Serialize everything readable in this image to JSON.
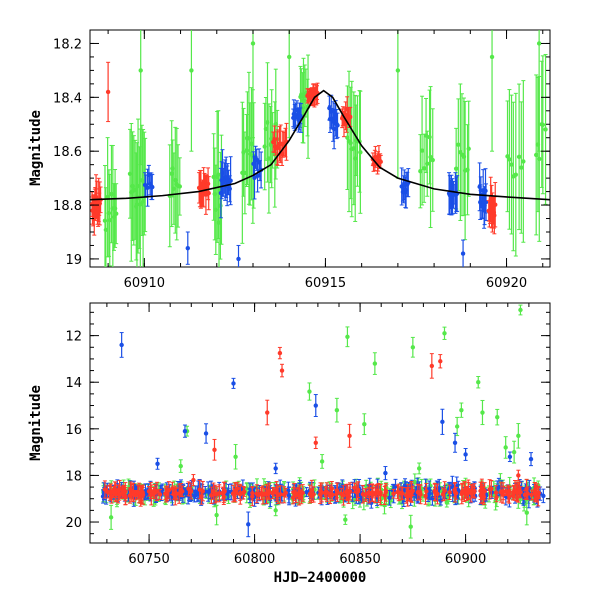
{
  "colors": {
    "red": "#ff3a2a",
    "blue": "#1a4fe6",
    "green": "#55e84a",
    "model": "#000000"
  },
  "chart_data": [
    {
      "type": "scatter",
      "panel": "top",
      "xlabel": "",
      "ylabel": "Magnitude",
      "xlim": [
        60908.5,
        60921.2
      ],
      "ylim": [
        19.03,
        18.15
      ],
      "y_inverted": true,
      "xticks": [
        60910,
        60915,
        60920
      ],
      "yticks": [
        18.2,
        18.4,
        18.6,
        18.8,
        19
      ],
      "ytick_labels": [
        "18.2",
        "18.4",
        "18.6",
        "18.8",
        "19"
      ],
      "model_curve": {
        "description": "peaked curve",
        "points": [
          [
            60908.5,
            18.78
          ],
          [
            60909.5,
            18.775
          ],
          [
            60910.5,
            18.765
          ],
          [
            60911.5,
            18.75
          ],
          [
            60912.5,
            18.72
          ],
          [
            60913.0,
            18.69
          ],
          [
            60913.5,
            18.65
          ],
          [
            60914.0,
            18.56
          ],
          [
            60914.4,
            18.47
          ],
          [
            60914.7,
            18.4
          ],
          [
            60914.95,
            18.375
          ],
          [
            60915.2,
            18.4
          ],
          [
            60915.5,
            18.47
          ],
          [
            60916.0,
            18.58
          ],
          [
            60916.5,
            18.66
          ],
          [
            60917.0,
            18.7
          ],
          [
            60918.0,
            18.74
          ],
          [
            60919.0,
            18.76
          ],
          [
            60920.0,
            18.77
          ],
          [
            60921.2,
            18.78
          ]
        ]
      },
      "series": [
        {
          "color": "red",
          "clusters": [
            {
              "x": [
                60908.55,
                60908.8
              ],
              "ymean": 18.8,
              "scatter": 0.07,
              "err": 0.06,
              "n": 16
            },
            {
              "x": [
                60911.5,
                60911.8
              ],
              "ymean": 18.74,
              "scatter": 0.06,
              "err": 0.06,
              "n": 12
            },
            {
              "x": [
                60913.55,
                60913.95
              ],
              "ymean": 18.58,
              "scatter": 0.05,
              "err": 0.05,
              "n": 12
            },
            {
              "x": [
                60914.5,
                60914.8
              ],
              "ymean": 18.39,
              "scatter": 0.03,
              "err": 0.03,
              "n": 16
            },
            {
              "x": [
                60915.45,
                60915.7
              ],
              "ymean": 18.47,
              "scatter": 0.04,
              "err": 0.04,
              "n": 10
            },
            {
              "x": [
                60916.3,
                60916.55
              ],
              "ymean": 18.64,
              "scatter": 0.03,
              "err": 0.03,
              "n": 10
            },
            {
              "x": [
                60919.5,
                60919.7
              ],
              "ymean": 18.82,
              "scatter": 0.06,
              "err": 0.06,
              "n": 10
            }
          ],
          "points": [
            [
              60909.0,
              18.38,
              0.11
            ]
          ]
        },
        {
          "color": "blue",
          "clusters": [
            {
              "x": [
                60910.0,
                60910.25
              ],
              "ymean": 18.72,
              "scatter": 0.05,
              "err": 0.05,
              "n": 7
            },
            {
              "x": [
                60912.1,
                60912.4
              ],
              "ymean": 18.72,
              "scatter": 0.07,
              "err": 0.07,
              "n": 12
            },
            {
              "x": [
                60913.0,
                60913.25
              ],
              "ymean": 18.67,
              "scatter": 0.07,
              "err": 0.06,
              "n": 8
            },
            {
              "x": [
                60914.1,
                60914.35
              ],
              "ymean": 18.47,
              "scatter": 0.04,
              "err": 0.04,
              "n": 10
            },
            {
              "x": [
                60915.1,
                60915.35
              ],
              "ymean": 18.48,
              "scatter": 0.06,
              "err": 0.06,
              "n": 10
            },
            {
              "x": [
                60917.1,
                60917.3
              ],
              "ymean": 18.74,
              "scatter": 0.05,
              "err": 0.05,
              "n": 8
            },
            {
              "x": [
                60918.4,
                60918.65
              ],
              "ymean": 18.76,
              "scatter": 0.06,
              "err": 0.06,
              "n": 10
            },
            {
              "x": [
                60919.25,
                60919.45
              ],
              "ymean": 18.78,
              "scatter": 0.07,
              "err": 0.07,
              "n": 10
            }
          ],
          "points": [
            [
              60911.2,
              18.96,
              0.06
            ],
            [
              60912.6,
              19.0,
              0.05
            ],
            [
              60918.8,
              18.98,
              0.05
            ]
          ]
        },
        {
          "color": "green",
          "clusters": [
            {
              "x": [
                60908.9,
                60909.25
              ],
              "ymean": 18.82,
              "scatter": 0.12,
              "err": 0.18,
              "n": 10
            },
            {
              "x": [
                60909.6,
                60910.05
              ],
              "ymean": 18.75,
              "scatter": 0.14,
              "err": 0.2,
              "n": 14
            },
            {
              "x": [
                60910.7,
                60911.0
              ],
              "ymean": 18.72,
              "scatter": 0.12,
              "err": 0.15,
              "n": 8
            },
            {
              "x": [
                60911.9,
                60912.15
              ],
              "ymean": 18.76,
              "scatter": 0.14,
              "err": 0.18,
              "n": 8
            },
            {
              "x": [
                60912.7,
                60913.05
              ],
              "ymean": 18.6,
              "scatter": 0.15,
              "err": 0.2,
              "n": 10
            },
            {
              "x": [
                60913.3,
                60913.7
              ],
              "ymean": 18.56,
              "scatter": 0.12,
              "err": 0.16,
              "n": 10
            },
            {
              "x": [
                60914.3,
                60914.55
              ],
              "ymean": 18.42,
              "scatter": 0.1,
              "err": 0.14,
              "n": 8
            },
            {
              "x": [
                60915.6,
                60916.0
              ],
              "ymean": 18.58,
              "scatter": 0.14,
              "err": 0.2,
              "n": 10
            },
            {
              "x": [
                60917.6,
                60918.0
              ],
              "ymean": 18.62,
              "scatter": 0.14,
              "err": 0.2,
              "n": 8
            },
            {
              "x": [
                60918.6,
                60919.0
              ],
              "ymean": 18.62,
              "scatter": 0.14,
              "err": 0.2,
              "n": 8
            },
            {
              "x": [
                60920.0,
                60920.5
              ],
              "ymean": 18.64,
              "scatter": 0.15,
              "err": 0.22,
              "n": 8
            },
            {
              "x": [
                60920.8,
                60921.1
              ],
              "ymean": 18.55,
              "scatter": 0.2,
              "err": 0.25,
              "n": 6
            }
          ],
          "points": [
            [
              60909.9,
              18.3,
              0.35
            ],
            [
              60911.3,
              18.3,
              0.3
            ],
            [
              60913.0,
              18.2,
              0.35
            ],
            [
              60914.0,
              18.25,
              0.3
            ],
            [
              60917.0,
              18.3,
              0.4
            ],
            [
              60919.6,
              18.25,
              0.35
            ],
            [
              60920.9,
              18.2,
              0.4
            ]
          ]
        }
      ]
    },
    {
      "type": "scatter",
      "panel": "bottom",
      "xlabel": "HJD−2400000",
      "ylabel": "Magnitude",
      "xlim": [
        60722,
        60940
      ],
      "ylim": [
        20.9,
        10.6
      ],
      "y_inverted": true,
      "xticks": [
        60750,
        60800,
        60850,
        60900
      ],
      "yticks": [
        12,
        14,
        16,
        18,
        20
      ],
      "baseline": {
        "ymean": 18.75,
        "scatter": 0.18,
        "x_range": [
          60728,
          60937
        ],
        "n_per_color": 240
      },
      "outliers": {
        "blue": [
          [
            60737,
            12.4
          ],
          [
            60790,
            14.05
          ],
          [
            60767,
            16.1
          ],
          [
            60777,
            16.2
          ],
          [
            60797,
            20.1
          ],
          [
            60829,
            15.0
          ],
          [
            60889,
            15.7
          ],
          [
            60895,
            16.6
          ],
          [
            60900,
            17.1
          ],
          [
            60921,
            17.2
          ],
          [
            60931,
            17.3
          ],
          [
            60754,
            17.5
          ],
          [
            60810,
            17.7
          ],
          [
            60862,
            17.9
          ]
        ],
        "red": [
          [
            60812,
            12.75
          ],
          [
            60813,
            13.5
          ],
          [
            60806,
            15.3
          ],
          [
            60781,
            16.9
          ],
          [
            60829,
            16.6
          ],
          [
            60845,
            16.3
          ],
          [
            60884,
            13.3
          ],
          [
            60888,
            13.1
          ],
          [
            60925,
            18.0
          ],
          [
            60771,
            18.2
          ]
        ],
        "green": [
          [
            60926,
            10.9
          ],
          [
            60890,
            11.9
          ],
          [
            60844,
            12.05
          ],
          [
            60875,
            12.5
          ],
          [
            60857,
            13.2
          ],
          [
            60906,
            14.0
          ],
          [
            60826,
            14.4
          ],
          [
            60839,
            15.2
          ],
          [
            60898,
            15.2
          ],
          [
            60908,
            15.3
          ],
          [
            60915,
            15.5
          ],
          [
            60852,
            15.8
          ],
          [
            60896,
            15.9
          ],
          [
            60768,
            16.1
          ],
          [
            60925,
            16.3
          ],
          [
            60765,
            17.6
          ],
          [
            60791,
            17.2
          ],
          [
            60832,
            17.4
          ],
          [
            60878,
            17.7
          ],
          [
            60919,
            16.8
          ],
          [
            60923,
            17.0
          ],
          [
            60732,
            19.8
          ],
          [
            60782,
            19.7
          ],
          [
            60843,
            19.9
          ],
          [
            60874,
            20.2
          ],
          [
            60929,
            19.6
          ],
          [
            60810,
            19.5
          ]
        ]
      }
    }
  ]
}
